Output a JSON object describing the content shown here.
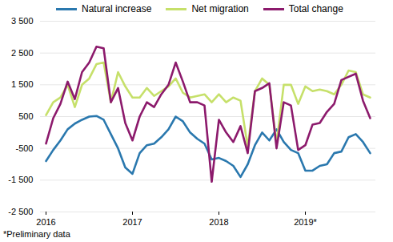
{
  "chart_data": {
    "type": "line",
    "categories": [
      "2016",
      null,
      null,
      null,
      null,
      null,
      null,
      null,
      null,
      null,
      null,
      null,
      "2017",
      null,
      null,
      null,
      null,
      null,
      null,
      null,
      null,
      null,
      null,
      null,
      "2018",
      null,
      null,
      null,
      null,
      null,
      null,
      null,
      null,
      null,
      null,
      null,
      "2019*",
      null,
      null,
      null,
      null,
      null,
      null,
      null,
      null,
      null
    ],
    "series": [
      {
        "name": "Natural increase",
        "color": "#2a78ae",
        "values": [
          -900,
          -550,
          -250,
          100,
          280,
          400,
          500,
          520,
          400,
          -50,
          -500,
          -1100,
          -1300,
          -650,
          -400,
          -350,
          -150,
          100,
          500,
          350,
          0,
          -200,
          -350,
          -850,
          -800,
          -900,
          -1050,
          -1400,
          -1000,
          -400,
          0,
          -250,
          100,
          -300,
          -550,
          -650,
          -1200,
          -1200,
          -1050,
          -1000,
          -650,
          -600,
          -150,
          -50,
          -300,
          -650
        ]
      },
      {
        "name": "Net migration",
        "color": "#c6e06a",
        "values": [
          550,
          950,
          1100,
          1500,
          800,
          1500,
          1700,
          2150,
          2200,
          950,
          1900,
          1450,
          1100,
          1100,
          1400,
          1150,
          1300,
          1450,
          1700,
          1250,
          1100,
          1150,
          1200,
          950,
          1200,
          950,
          1100,
          1000,
          -450,
          1300,
          1700,
          1500,
          -350,
          1500,
          1500,
          900,
          1450,
          1300,
          1350,
          1300,
          1200,
          1500,
          1950,
          1900,
          1200,
          1100
        ]
      },
      {
        "name": "Total change",
        "color": "#8c1a6c",
        "values": [
          -350,
          450,
          900,
          1600,
          1050,
          1900,
          2200,
          2700,
          2650,
          950,
          1400,
          300,
          -250,
          500,
          950,
          800,
          1200,
          1500,
          2200,
          1600,
          950,
          950,
          850,
          -1550,
          400,
          0,
          -300,
          200,
          -650,
          1300,
          1400,
          1550,
          -500,
          950,
          850,
          -550,
          -400,
          250,
          300,
          650,
          900,
          1650,
          1750,
          1850,
          1000,
          450
        ]
      }
    ],
    "ylim": [
      -2500,
      3500
    ],
    "yticks": [
      {
        "value": -2500,
        "label": "-2 500"
      },
      {
        "value": -1500,
        "label": "-1 500"
      },
      -500,
      500,
      {
        "value": 1500,
        "label": "1 500"
      },
      {
        "value": 2500,
        "label": "2 500"
      },
      {
        "value": 3500,
        "label": "3 500"
      }
    ],
    "grid": true,
    "legend": "top",
    "caption": "*Preliminary data"
  }
}
